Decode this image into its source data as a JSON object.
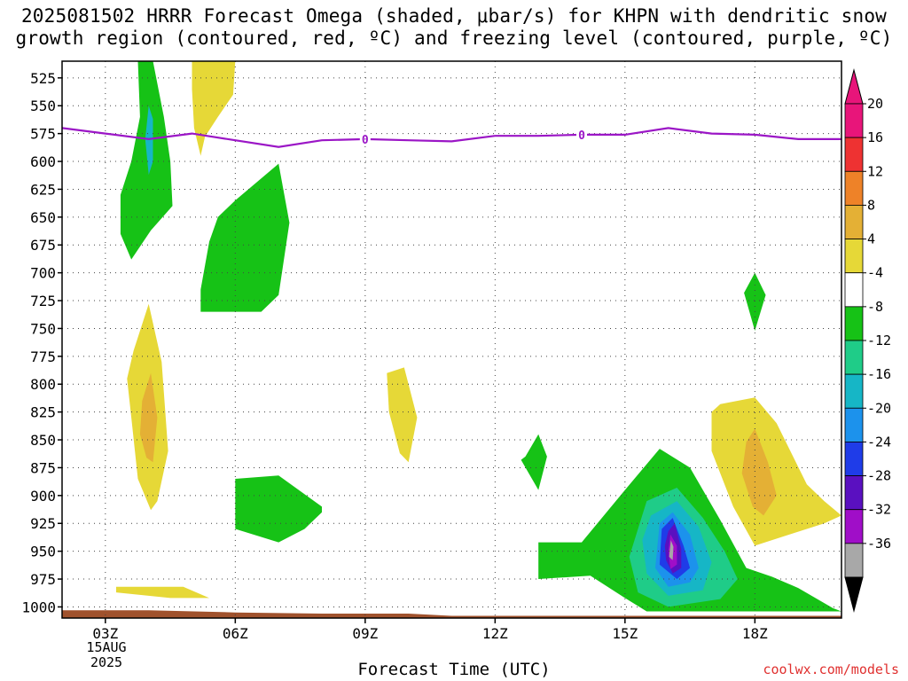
{
  "title_lines": [
    "2025081502 HRRR Forecast Omega (shaded, μbar/s) for KHPN with dendritic snow",
    "growth region (contoured, red, ºC) and freezing level (contoured, purple, ºC)"
  ],
  "site": "coolwx.com/models",
  "chart_data": {
    "type": "heatmap",
    "title": "2025081502 HRRR Forecast Omega (shaded, μbar/s) for KHPN with dendritic snow growth region (contoured, red, ºC) and freezing level (contoured, purple, ºC)",
    "xlabel": "Forecast Time (UTC)",
    "ylabel": "",
    "x_range_hours": [
      2,
      20
    ],
    "x_ticks": [
      "03Z",
      "06Z",
      "09Z",
      "12Z",
      "15Z",
      "18Z"
    ],
    "x_tick_hours": [
      3,
      6,
      9,
      12,
      15,
      18
    ],
    "date_label": [
      "15AUG",
      "2025"
    ],
    "y_range_hpa": [
      510,
      1010
    ],
    "y_ticks": [
      525,
      550,
      575,
      600,
      625,
      650,
      675,
      700,
      725,
      750,
      775,
      800,
      825,
      850,
      875,
      900,
      925,
      950,
      975,
      1000
    ],
    "grid": true,
    "colorbar": {
      "labels": [
        "20",
        "16",
        "12",
        "8",
        "4",
        "-4",
        "-8",
        "-12",
        "-16",
        "-20",
        "-24",
        "-28",
        "-32",
        "-36"
      ],
      "colors": [
        "#e8157a",
        "#ee3232",
        "#ee8228",
        "#e4b035",
        "#e6d837",
        "#ffffff",
        "#16c216",
        "#1fcc88",
        "#16b6c6",
        "#1c92ec",
        "#1f3ce8",
        "#5a10c0",
        "#a00ec8",
        "#a8a8a8"
      ],
      "over_color": "#e8157a",
      "under_color": "#000000"
    },
    "freezing_level": {
      "label": "0",
      "label_hours": [
        9,
        14
      ],
      "color": "#9b16c6",
      "hours": [
        2,
        3,
        4,
        5,
        6,
        7,
        8,
        9,
        10,
        11,
        12,
        13,
        14,
        15,
        16,
        17,
        18,
        19,
        20
      ],
      "pressure_hpa": [
        570,
        575,
        580,
        575,
        581,
        587,
        581,
        580,
        581,
        582,
        577,
        577,
        576,
        576,
        570,
        575,
        576,
        580,
        580
      ]
    },
    "regions": [
      {
        "color": "#16c216",
        "points": [
          [
            3.75,
            510
          ],
          [
            4.1,
            510
          ],
          [
            4.35,
            560
          ],
          [
            4.5,
            600
          ],
          [
            4.55,
            640
          ],
          [
            4.05,
            662
          ],
          [
            3.6,
            688
          ],
          [
            3.35,
            665
          ],
          [
            3.35,
            630
          ],
          [
            3.6,
            600
          ],
          [
            3.8,
            560
          ]
        ]
      },
      {
        "color": "#16b6c6",
        "points": [
          [
            4.0,
            550
          ],
          [
            4.1,
            562
          ],
          [
            4.1,
            600
          ],
          [
            4.0,
            612
          ],
          [
            3.92,
            580
          ]
        ]
      },
      {
        "color": "#e6d837",
        "points": [
          [
            5.0,
            510
          ],
          [
            6.0,
            510
          ],
          [
            5.95,
            540
          ],
          [
            5.6,
            560
          ],
          [
            5.3,
            578
          ],
          [
            5.2,
            595
          ],
          [
            5.05,
            570
          ],
          [
            5.0,
            535
          ]
        ]
      },
      {
        "color": "#16c216",
        "points": [
          [
            6.0,
            635
          ],
          [
            7.0,
            602
          ],
          [
            7.25,
            655
          ],
          [
            7.0,
            720
          ],
          [
            6.6,
            735
          ],
          [
            5.8,
            735
          ],
          [
            5.2,
            735
          ],
          [
            5.2,
            715
          ],
          [
            5.4,
            672
          ],
          [
            5.6,
            650
          ]
        ]
      },
      {
        "color": "#e6d837",
        "points": [
          [
            3.65,
            770
          ],
          [
            4.0,
            728
          ],
          [
            4.3,
            780
          ],
          [
            4.45,
            860
          ],
          [
            4.2,
            905
          ],
          [
            4.05,
            913
          ],
          [
            3.75,
            885
          ],
          [
            3.6,
            830
          ],
          [
            3.5,
            795
          ]
        ]
      },
      {
        "color": "#e4b035",
        "points": [
          [
            3.85,
            815
          ],
          [
            4.05,
            790
          ],
          [
            4.2,
            830
          ],
          [
            4.1,
            870
          ],
          [
            3.95,
            866
          ],
          [
            3.8,
            845
          ]
        ]
      },
      {
        "color": "#e6d837",
        "points": [
          [
            9.5,
            790
          ],
          [
            9.9,
            785
          ],
          [
            10.2,
            830
          ],
          [
            10.0,
            870
          ],
          [
            9.8,
            862
          ],
          [
            9.55,
            825
          ]
        ]
      },
      {
        "color": "#16c216",
        "points": [
          [
            12.7,
            865
          ],
          [
            13.0,
            845
          ],
          [
            13.2,
            865
          ],
          [
            13.0,
            895
          ],
          [
            12.6,
            868
          ]
        ]
      },
      {
        "color": "#16c216",
        "points": [
          [
            6.0,
            885
          ],
          [
            7.0,
            882
          ],
          [
            8.0,
            910
          ],
          [
            8.0,
            915
          ],
          [
            7.6,
            930
          ],
          [
            7.0,
            942
          ],
          [
            6.0,
            930
          ]
        ]
      },
      {
        "color": "#e6d837",
        "points": [
          [
            3.25,
            982
          ],
          [
            4.8,
            982
          ],
          [
            5.4,
            992
          ],
          [
            4.5,
            992
          ],
          [
            3.25,
            987
          ]
        ]
      },
      {
        "color": "#16c216",
        "points": [
          [
            18.0,
            700
          ],
          [
            18.25,
            720
          ],
          [
            18.0,
            752
          ],
          [
            17.75,
            718
          ]
        ]
      },
      {
        "color": "#e6d837",
        "points": [
          [
            17.2,
            818
          ],
          [
            18.0,
            812
          ],
          [
            18.5,
            835
          ],
          [
            19.2,
            890
          ],
          [
            19.6,
            905
          ],
          [
            20.0,
            918
          ],
          [
            19.6,
            925
          ],
          [
            18.8,
            935
          ],
          [
            18.0,
            945
          ],
          [
            17.5,
            910
          ],
          [
            17.0,
            860
          ],
          [
            17.0,
            825
          ]
        ]
      },
      {
        "color": "#e4b035",
        "points": [
          [
            17.8,
            852
          ],
          [
            18.0,
            840
          ],
          [
            18.3,
            870
          ],
          [
            18.5,
            900
          ],
          [
            18.2,
            918
          ],
          [
            17.95,
            910
          ],
          [
            17.7,
            880
          ]
        ]
      },
      {
        "color": "#16c216",
        "points": [
          [
            13.0,
            942
          ],
          [
            14.0,
            942
          ],
          [
            15.0,
            895
          ],
          [
            15.8,
            858
          ],
          [
            16.5,
            875
          ],
          [
            17.2,
            922
          ],
          [
            17.8,
            965
          ],
          [
            18.4,
            973
          ],
          [
            19.0,
            983
          ],
          [
            19.8,
            1001
          ],
          [
            20.0,
            1004
          ],
          [
            15.5,
            1004
          ],
          [
            15.0,
            992
          ],
          [
            14.2,
            972
          ],
          [
            13.0,
            975
          ]
        ]
      },
      {
        "color": "#1fcc88",
        "points": [
          [
            15.5,
            905
          ],
          [
            16.2,
            893
          ],
          [
            16.8,
            920
          ],
          [
            17.3,
            950
          ],
          [
            17.6,
            975
          ],
          [
            17.2,
            993
          ],
          [
            16.0,
            1000
          ],
          [
            15.3,
            987
          ],
          [
            15.1,
            955
          ]
        ]
      },
      {
        "color": "#16b6c6",
        "points": [
          [
            15.6,
            918
          ],
          [
            16.2,
            905
          ],
          [
            16.7,
            928
          ],
          [
            17.0,
            960
          ],
          [
            16.8,
            985
          ],
          [
            16.0,
            990
          ],
          [
            15.5,
            970
          ],
          [
            15.4,
            940
          ]
        ]
      },
      {
        "color": "#1c92ec",
        "points": [
          [
            15.8,
            925
          ],
          [
            16.1,
            915
          ],
          [
            16.5,
            935
          ],
          [
            16.7,
            965
          ],
          [
            16.5,
            978
          ],
          [
            16.0,
            982
          ],
          [
            15.7,
            965
          ]
        ]
      },
      {
        "color": "#1f3ce8",
        "points": [
          [
            15.85,
            930
          ],
          [
            16.1,
            920
          ],
          [
            16.35,
            945
          ],
          [
            16.5,
            965
          ],
          [
            16.2,
            975
          ],
          [
            15.8,
            962
          ]
        ]
      },
      {
        "color": "#5a10c0",
        "points": [
          [
            16.0,
            932
          ],
          [
            16.15,
            925
          ],
          [
            16.3,
            948
          ],
          [
            16.3,
            965
          ],
          [
            16.1,
            970
          ],
          [
            15.95,
            958
          ],
          [
            15.92,
            945
          ]
        ]
      },
      {
        "color": "#a00ec8",
        "points": [
          [
            16.05,
            935
          ],
          [
            16.2,
            945
          ],
          [
            16.2,
            962
          ],
          [
            16.05,
            966
          ],
          [
            16.0,
            950
          ]
        ]
      },
      {
        "color": "#a8a8a8",
        "points": [
          [
            16.06,
            940
          ],
          [
            16.12,
            946
          ],
          [
            16.1,
            958
          ],
          [
            16.02,
            955
          ]
        ]
      }
    ],
    "surface": {
      "color": "#a0522d",
      "hours": [
        2,
        4,
        6,
        8,
        10,
        11,
        12,
        14,
        16,
        18,
        20
      ],
      "pressure_hpa": [
        1003,
        1003,
        1005,
        1006,
        1006,
        1008,
        1008,
        1008,
        1008,
        1008,
        1008
      ]
    }
  }
}
